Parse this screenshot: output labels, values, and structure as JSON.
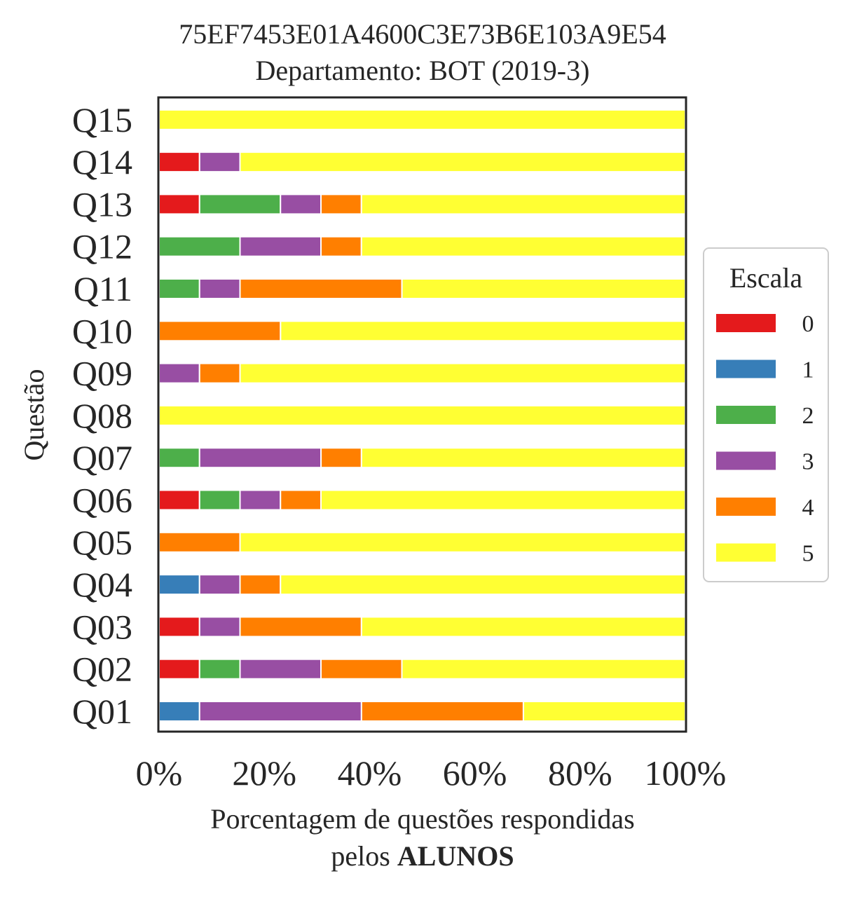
{
  "chart_data": {
    "type": "bar",
    "orientation": "horizontal",
    "stacked": true,
    "title_line1": "75EF7453E01A4600C3E73B6E103A9E54",
    "title_line2": "Departamento: BOT (2019-3)",
    "ylabel": "Questão",
    "xlabel_line1": "Porcentagem de questões respondidas",
    "xlabel_line2_prefix": "pelos ",
    "xlabel_line2_bold": "ALUNOS",
    "xlim": [
      0,
      100
    ],
    "x_ticks": [
      0,
      20,
      40,
      60,
      80,
      100
    ],
    "x_tick_labels": [
      "0%",
      "20%",
      "40%",
      "60%",
      "80%",
      "100%"
    ],
    "grid": false,
    "legend": {
      "title": "Escala",
      "position": "right",
      "entries": [
        "0",
        "1",
        "2",
        "3",
        "4",
        "5"
      ]
    },
    "categories": [
      "Q01",
      "Q02",
      "Q03",
      "Q04",
      "Q05",
      "Q06",
      "Q07",
      "Q08",
      "Q09",
      "Q10",
      "Q11",
      "Q12",
      "Q13",
      "Q14",
      "Q15"
    ],
    "series": [
      {
        "name": "0",
        "color": "#e41a1c",
        "values": [
          0,
          7.69,
          7.69,
          0,
          0,
          7.69,
          0,
          0,
          0,
          0,
          0,
          0,
          7.69,
          7.69,
          0
        ]
      },
      {
        "name": "1",
        "color": "#377eb8",
        "values": [
          7.69,
          0,
          0,
          7.69,
          0,
          0,
          0,
          0,
          0,
          0,
          0,
          0,
          0,
          0,
          0
        ]
      },
      {
        "name": "2",
        "color": "#4daf4a",
        "values": [
          0,
          7.69,
          0,
          0,
          0,
          7.69,
          7.69,
          0,
          0,
          0,
          7.69,
          15.38,
          15.38,
          0,
          0
        ]
      },
      {
        "name": "3",
        "color": "#984ea3",
        "values": [
          30.77,
          15.38,
          7.69,
          7.69,
          0,
          7.69,
          23.08,
          0,
          7.69,
          0,
          7.69,
          15.38,
          7.69,
          7.69,
          0
        ]
      },
      {
        "name": "4",
        "color": "#ff7f00",
        "values": [
          30.77,
          15.38,
          23.08,
          7.69,
          15.38,
          7.69,
          7.69,
          0,
          7.69,
          23.08,
          30.77,
          7.69,
          7.69,
          0,
          0
        ]
      },
      {
        "name": "5",
        "color": "#ffff33",
        "values": [
          30.77,
          53.85,
          61.54,
          76.92,
          84.62,
          69.23,
          61.54,
          100,
          84.62,
          76.92,
          53.85,
          61.54,
          61.54,
          84.62,
          100
        ]
      }
    ]
  }
}
